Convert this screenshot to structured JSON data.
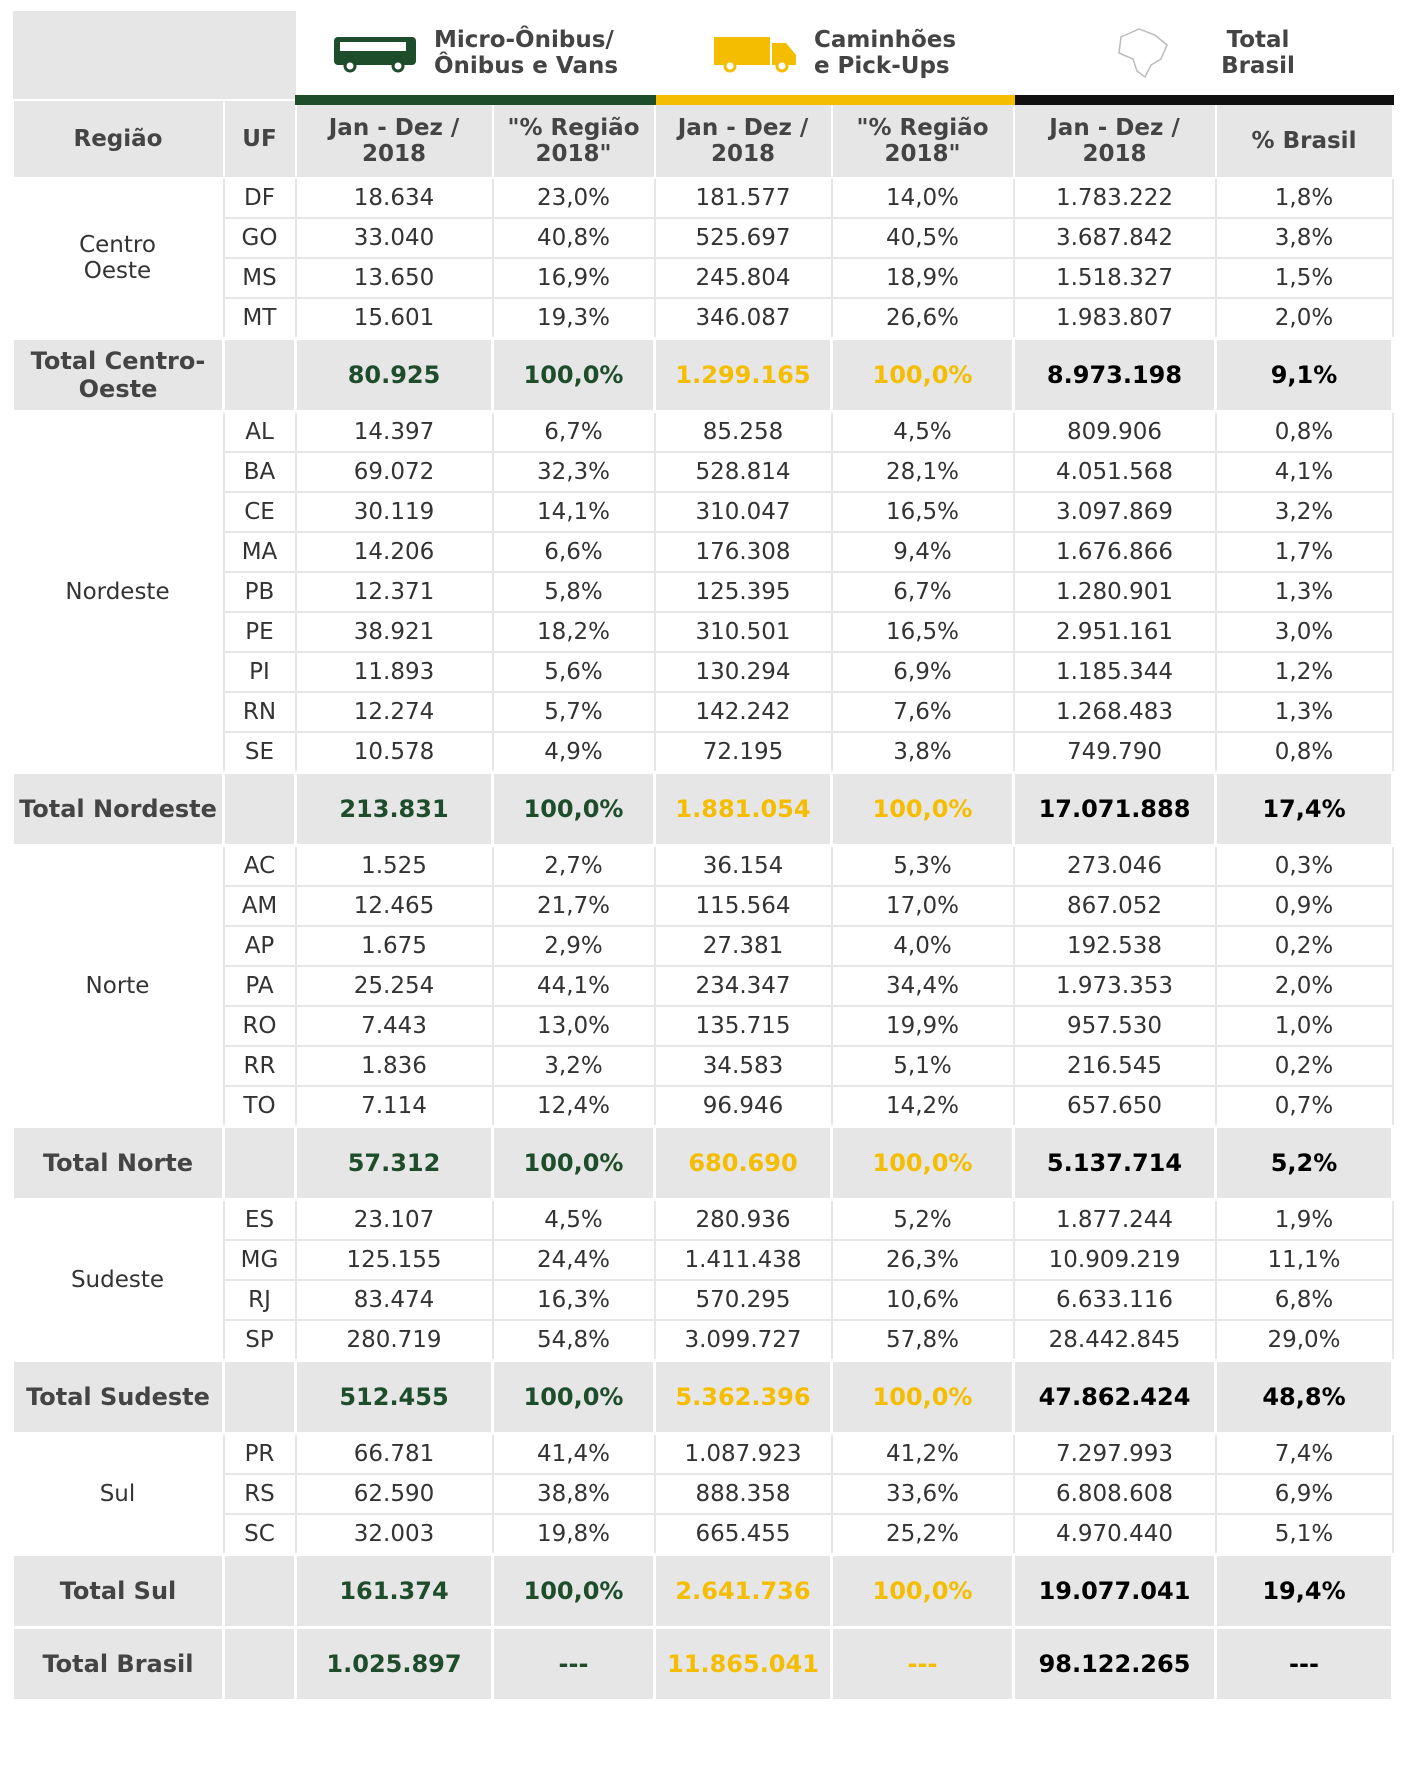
{
  "header": {
    "groups": [
      {
        "lines": [
          "Micro-Ônibus/",
          "Ônibus e Vans"
        ]
      },
      {
        "lines": [
          "Caminhões",
          "e Pick-Ups"
        ]
      },
      {
        "lines": [
          "Total",
          "Brasil"
        ]
      }
    ],
    "columns": [
      "Região",
      "UF",
      "Jan - Dez / 2018",
      "\"% Região 2018\"",
      "Jan - Dez / 2018",
      "\"% Região 2018\"",
      "Jan - Dez / 2018",
      "% Brasil"
    ]
  },
  "regions": [
    {
      "name": "Centro Oeste",
      "rows": [
        [
          "DF",
          "18.634",
          "23,0%",
          "181.577",
          "14,0%",
          "1.783.222",
          "1,8%"
        ],
        [
          "GO",
          "33.040",
          "40,8%",
          "525.697",
          "40,5%",
          "3.687.842",
          "3,8%"
        ],
        [
          "MS",
          "13.650",
          "16,9%",
          "245.804",
          "18,9%",
          "1.518.327",
          "1,5%"
        ],
        [
          "MT",
          "15.601",
          "19,3%",
          "346.087",
          "26,6%",
          "1.983.807",
          "2,0%"
        ]
      ],
      "total": {
        "label": "Total Centro-Oeste",
        "values": [
          "80.925",
          "100,0%",
          "1.299.165",
          "100,0%",
          "8.973.198",
          "9,1%"
        ]
      }
    },
    {
      "name": "Nordeste",
      "rows": [
        [
          "AL",
          "14.397",
          "6,7%",
          "85.258",
          "4,5%",
          "809.906",
          "0,8%"
        ],
        [
          "BA",
          "69.072",
          "32,3%",
          "528.814",
          "28,1%",
          "4.051.568",
          "4,1%"
        ],
        [
          "CE",
          "30.119",
          "14,1%",
          "310.047",
          "16,5%",
          "3.097.869",
          "3,2%"
        ],
        [
          "MA",
          "14.206",
          "6,6%",
          "176.308",
          "9,4%",
          "1.676.866",
          "1,7%"
        ],
        [
          "PB",
          "12.371",
          "5,8%",
          "125.395",
          "6,7%",
          "1.280.901",
          "1,3%"
        ],
        [
          "PE",
          "38.921",
          "18,2%",
          "310.501",
          "16,5%",
          "2.951.161",
          "3,0%"
        ],
        [
          "PI",
          "11.893",
          "5,6%",
          "130.294",
          "6,9%",
          "1.185.344",
          "1,2%"
        ],
        [
          "RN",
          "12.274",
          "5,7%",
          "142.242",
          "7,6%",
          "1.268.483",
          "1,3%"
        ],
        [
          "SE",
          "10.578",
          "4,9%",
          "72.195",
          "3,8%",
          "749.790",
          "0,8%"
        ]
      ],
      "total": {
        "label": "Total Nordeste",
        "values": [
          "213.831",
          "100,0%",
          "1.881.054",
          "100,0%",
          "17.071.888",
          "17,4%"
        ]
      }
    },
    {
      "name": "Norte",
      "rows": [
        [
          "AC",
          "1.525",
          "2,7%",
          "36.154",
          "5,3%",
          "273.046",
          "0,3%"
        ],
        [
          "AM",
          "12.465",
          "21,7%",
          "115.564",
          "17,0%",
          "867.052",
          "0,9%"
        ],
        [
          "AP",
          "1.675",
          "2,9%",
          "27.381",
          "4,0%",
          "192.538",
          "0,2%"
        ],
        [
          "PA",
          "25.254",
          "44,1%",
          "234.347",
          "34,4%",
          "1.973.353",
          "2,0%"
        ],
        [
          "RO",
          "7.443",
          "13,0%",
          "135.715",
          "19,9%",
          "957.530",
          "1,0%"
        ],
        [
          "RR",
          "1.836",
          "3,2%",
          "34.583",
          "5,1%",
          "216.545",
          "0,2%"
        ],
        [
          "TO",
          "7.114",
          "12,4%",
          "96.946",
          "14,2%",
          "657.650",
          "0,7%"
        ]
      ],
      "total": {
        "label": "Total Norte",
        "values": [
          "57.312",
          "100,0%",
          "680.690",
          "100,0%",
          "5.137.714",
          "5,2%"
        ]
      }
    },
    {
      "name": "Sudeste",
      "rows": [
        [
          "ES",
          "23.107",
          "4,5%",
          "280.936",
          "5,2%",
          "1.877.244",
          "1,9%"
        ],
        [
          "MG",
          "125.155",
          "24,4%",
          "1.411.438",
          "26,3%",
          "10.909.219",
          "11,1%"
        ],
        [
          "RJ",
          "83.474",
          "16,3%",
          "570.295",
          "10,6%",
          "6.633.116",
          "6,8%"
        ],
        [
          "SP",
          "280.719",
          "54,8%",
          "3.099.727",
          "57,8%",
          "28.442.845",
          "29,0%"
        ]
      ],
      "total": {
        "label": "Total Sudeste",
        "values": [
          "512.455",
          "100,0%",
          "5.362.396",
          "100,0%",
          "47.862.424",
          "48,8%"
        ]
      }
    },
    {
      "name": "Sul",
      "rows": [
        [
          "PR",
          "66.781",
          "41,4%",
          "1.087.923",
          "41,2%",
          "7.297.993",
          "7,4%"
        ],
        [
          "RS",
          "62.590",
          "38,8%",
          "888.358",
          "33,6%",
          "6.808.608",
          "6,9%"
        ],
        [
          "SC",
          "32.003",
          "19,8%",
          "665.455",
          "25,2%",
          "4.970.440",
          "5,1%"
        ]
      ],
      "total": {
        "label": "Total Sul",
        "values": [
          "161.374",
          "100,0%",
          "2.641.736",
          "100,0%",
          "19.077.041",
          "19,4%"
        ]
      }
    }
  ],
  "grand_total": {
    "label": "Total Brasil",
    "values": [
      "1.025.897",
      "---",
      "11.865.041",
      "---",
      "98.122.265",
      "---"
    ]
  }
}
